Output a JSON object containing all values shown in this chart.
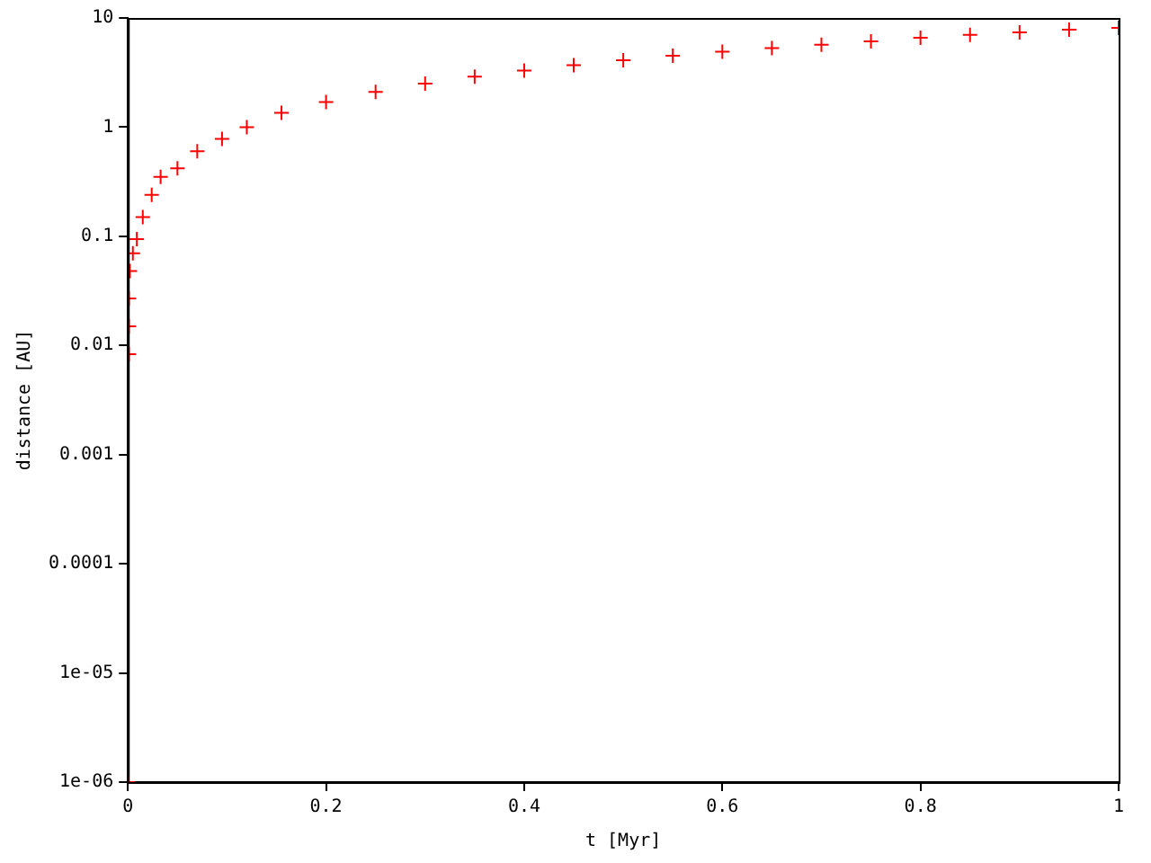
{
  "chart_data": {
    "type": "scatter",
    "xlabel": "t [Myr]",
    "ylabel": "distance [AU]",
    "x": [
      0,
      0.001,
      0.001,
      0.001,
      0.002,
      0.005,
      0.009,
      0.015,
      0.024,
      0.033,
      0.05,
      0.07,
      0.095,
      0.12,
      0.155,
      0.2,
      0.25,
      0.3,
      0.35,
      0.4,
      0.45,
      0.5,
      0.55,
      0.6,
      0.65,
      0.7,
      0.75,
      0.8,
      0.85,
      0.9,
      0.95,
      1.0
    ],
    "series": [
      {
        "color": "#ff0000",
        "values": [
          1e-06,
          0.0083,
          0.015,
          0.027,
          0.048,
          0.07,
          0.094,
          0.15,
          0.24,
          0.35,
          0.42,
          0.6,
          0.78,
          1.0,
          1.35,
          1.7,
          2.1,
          2.5,
          2.9,
          3.3,
          3.7,
          4.1,
          4.5,
          4.9,
          5.3,
          5.7,
          6.1,
          6.6,
          7.0,
          7.4,
          7.8,
          8.1
        ]
      }
    ],
    "xlim": [
      0,
      1
    ],
    "xticks": [
      0,
      0.2,
      0.4,
      0.6,
      0.8,
      1
    ],
    "ylim": [
      1e-06,
      10
    ],
    "yticks": [
      {
        "value": 1e-06,
        "label": "1e-06"
      },
      {
        "value": 1e-05,
        "label": "1e-05"
      },
      0.0001,
      0.001,
      0.01,
      0.1,
      1,
      10
    ],
    "log": "y",
    "grid": false,
    "legend": false,
    "marker": "cross",
    "line_style": "none"
  }
}
